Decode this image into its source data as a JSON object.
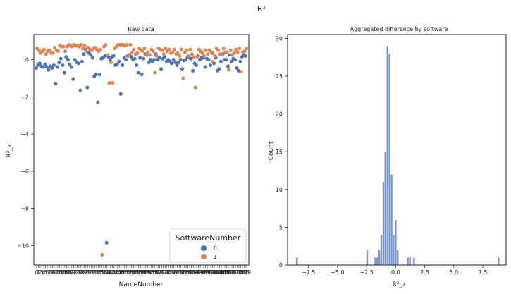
{
  "figure": {
    "title": "R²"
  },
  "chart_data": [
    {
      "type": "scatter",
      "title": "Raw data",
      "xlabel": "NameNumber",
      "ylabel": "R²_z",
      "ylim": [
        -11.05,
        1.35
      ],
      "yticks": [
        0,
        -2,
        -4,
        -6,
        -8,
        -10
      ],
      "grid": false,
      "legend": {
        "title": "SoftwareNumber",
        "placement": "bottom-right",
        "entries": [
          "0",
          "1"
        ]
      },
      "n_categories": 120,
      "series": [
        {
          "name": "0",
          "color": "#4c72b0",
          "values": [
            -0.45,
            -0.3,
            -0.2,
            -0.35,
            -0.4,
            -0.25,
            -0.4,
            -0.55,
            -0.35,
            -0.45,
            -0.3,
            -1.3,
            -0.4,
            -0.15,
            0.05,
            -0.3,
            -0.7,
            0.15,
            0.0,
            -0.25,
            -0.4,
            -1.05,
            0.0,
            -0.15,
            -0.2,
            -1.65,
            -0.1,
            0.3,
            0.55,
            -1.5,
            0.35,
            0.25,
            0.1,
            -0.9,
            -0.8,
            -2.3,
            -0.8,
            0.05,
            0.1,
            0.2,
            -9.85,
            0.15,
            0.0,
            0.15,
            0.2,
            -0.3,
            -0.25,
            -0.1,
            -1.85,
            -0.3,
            0.1,
            0.0,
            0.2,
            0.25,
            0.15,
            0.0,
            0.05,
            -0.3,
            -0.7,
            0.1,
            -0.8,
            0.05,
            0.3,
            0.25,
            -0.15,
            0.0,
            -0.1,
            0.0,
            0.3,
            0.0,
            0.1,
            -0.5,
            0.05,
            0.15,
            -0.1,
            0.0,
            -0.1,
            -0.2,
            0.0,
            -0.15,
            -0.3,
            -0.15,
            0.0,
            -0.5,
            -0.05,
            0.0,
            0.15,
            0.1,
            0.05,
            -0.6,
            -0.2,
            -0.3,
            0.2,
            0.0,
            0.1,
            0.1,
            -0.4,
            0.05,
            0.0,
            -0.3,
            0.35,
            -0.2,
            0.1,
            -0.6,
            -0.5,
            -0.1,
            0.3,
            0.0,
            0.0,
            -0.35,
            0.25,
            -0.1,
            0.05,
            0.0,
            -0.45,
            -0.6,
            -0.1,
            0.15,
            0.25,
            0.2
          ]
        },
        {
          "name": "1",
          "color": "#dd8452",
          "values": [
            0.6,
            0.5,
            0.35,
            0.45,
            0.55,
            0.3,
            0.45,
            0.5,
            0.35,
            0.35,
            0.65,
            0.5,
            0.45,
            0.75,
            0.7,
            0.7,
            0.45,
            0.7,
            0.8,
            0.75,
            0.7,
            0.8,
            0.75,
            0.75,
            0.7,
            0.8,
            0.6,
            0.75,
            0.45,
            0.65,
            0.55,
            0.5,
            0.6,
            0.65,
            0.55,
            0.45,
            0.55,
            -10.5,
            0.7,
            0.8,
            0.25,
            -1.25,
            -0.15,
            -1.25,
            0.6,
            0.7,
            0.8,
            0.8,
            0.8,
            0.8,
            0.75,
            0.8,
            0.2,
            0.8,
            0.4,
            0.55,
            0.3,
            0.35,
            0.6,
            0.5,
            0.45,
            0.6,
            0.3,
            0.4,
            0.25,
            0.55,
            0.45,
            -0.7,
            0.2,
            0.6,
            0.55,
            0.5,
            0.3,
            0.6,
            0.45,
            0.55,
            0.35,
            0.4,
            0.55,
            0.3,
            0.35,
            0.2,
            0.55,
            -1.0,
            0.4,
            0.5,
            0.2,
            0.55,
            0.3,
            0.15,
            -1.5,
            0.15,
            0.55,
            0.45,
            0.35,
            0.2,
            0.5,
            0.3,
            0.5,
            0.4,
            -0.1,
            0.2,
            0.6,
            0.5,
            0.3,
            0.25,
            0.6,
            0.4,
            0.4,
            -0.55,
            0.5,
            0.25,
            0.35,
            0.55,
            0.4,
            0.6,
            -0.65,
            0.4,
            0.45,
            0.6
          ]
        }
      ]
    },
    {
      "type": "bar",
      "title": "Aggregated difference by software",
      "xlabel": "R²_z",
      "ylabel": "Count",
      "xlim": [
        -9.3,
        9.5
      ],
      "ylim": [
        0,
        30.5
      ],
      "xticks": [
        -7.5,
        -5.0,
        -2.5,
        0.0,
        2.5,
        5.0,
        7.5
      ],
      "xtick_labels": [
        "−7.5",
        "−5.0",
        "−2.5",
        "0.0",
        "2.5",
        "5.0",
        "7.5"
      ],
      "yticks": [
        0,
        5,
        10,
        15,
        20,
        25,
        30
      ],
      "grid": false,
      "color": "#4c72b0",
      "bin_width": 0.175,
      "bins": [
        {
          "x": -8.5,
          "count": 1
        },
        {
          "x": -2.45,
          "count": 2
        },
        {
          "x": -1.75,
          "count": 1
        },
        {
          "x": -1.58,
          "count": 1
        },
        {
          "x": -1.4,
          "count": 2
        },
        {
          "x": -1.23,
          "count": 4
        },
        {
          "x": -1.05,
          "count": 11
        },
        {
          "x": -0.88,
          "count": 15
        },
        {
          "x": -0.7,
          "count": 29
        },
        {
          "x": -0.53,
          "count": 28
        },
        {
          "x": -0.35,
          "count": 12
        },
        {
          "x": -0.18,
          "count": 4
        },
        {
          "x": 0.0,
          "count": 6
        },
        {
          "x": 0.17,
          "count": 2
        },
        {
          "x": 1.05,
          "count": 1
        },
        {
          "x": 1.23,
          "count": 1
        },
        {
          "x": 1.58,
          "count": 1
        },
        {
          "x": 8.85,
          "count": 1
        }
      ]
    }
  ]
}
